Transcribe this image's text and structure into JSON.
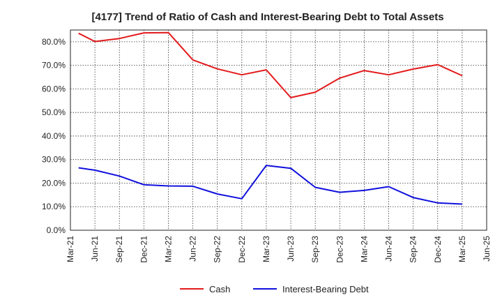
{
  "chart_data": {
    "type": "line",
    "title": "[4177]  Trend of Ratio of Cash and Interest-Bearing Debt to Total Assets",
    "xlabel": "",
    "ylabel": "",
    "x_ticks": [
      "Mar-21",
      "Jun-21",
      "Sep-21",
      "Dec-21",
      "Mar-22",
      "Jun-22",
      "Sep-22",
      "Dec-22",
      "Mar-23",
      "Jun-23",
      "Sep-23",
      "Dec-23",
      "Mar-24",
      "Jun-24",
      "Sep-24",
      "Dec-24",
      "Mar-25",
      "Jun-25"
    ],
    "y_ticks": [
      "0.0%",
      "10.0%",
      "20.0%",
      "30.0%",
      "40.0%",
      "50.0%",
      "60.0%",
      "70.0%",
      "80.0%"
    ],
    "ylim": [
      0,
      85
    ],
    "grid": true,
    "legend_position": "bottom-center",
    "categories": [
      "Apr-21",
      "Jun-21",
      "Sep-21",
      "Dec-21",
      "Mar-22",
      "Jun-22",
      "Sep-22",
      "Dec-22",
      "Mar-23",
      "Jun-23",
      "Sep-23",
      "Dec-23",
      "Mar-24",
      "Jun-24",
      "Sep-24",
      "Dec-24",
      "Mar-25"
    ],
    "series": [
      {
        "name": "Cash",
        "color": "#e31a1c",
        "values": [
          83.6,
          80.1,
          81.4,
          83.8,
          83.9,
          72.3,
          68.5,
          66.0,
          68.1,
          56.3,
          58.6,
          64.6,
          67.8,
          66.0,
          68.4,
          70.3,
          65.6
        ]
      },
      {
        "name": "Interest-Bearing Debt",
        "color": "#1010dd",
        "values": [
          26.5,
          25.5,
          23.0,
          19.3,
          18.8,
          18.7,
          15.4,
          13.4,
          27.5,
          26.3,
          18.2,
          16.1,
          16.9,
          18.5,
          13.9,
          11.6,
          11.1
        ]
      }
    ]
  }
}
